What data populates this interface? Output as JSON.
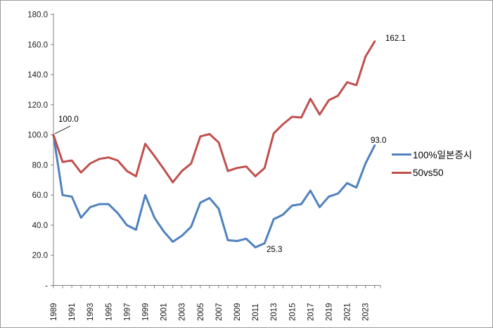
{
  "chart_data": {
    "type": "line",
    "x": [
      1989,
      1990,
      1991,
      1992,
      1993,
      1994,
      1995,
      1996,
      1997,
      1998,
      1999,
      2000,
      2001,
      2002,
      2003,
      2004,
      2005,
      2006,
      2007,
      2008,
      2009,
      2010,
      2011,
      2012,
      2013,
      2014,
      2015,
      2016,
      2017,
      2018,
      2019,
      2020,
      2021,
      2022,
      2023,
      2024
    ],
    "x_tick_labels": [
      "1989",
      "1991",
      "1993",
      "1995",
      "1997",
      "1999",
      "2001",
      "2003",
      "2005",
      "2007",
      "2009",
      "2011",
      "2013",
      "2015",
      "2017",
      "2019",
      "2021",
      "2023"
    ],
    "y_axis": {
      "min": 0,
      "max": 180,
      "step": 20,
      "tick_labels": [
        "180.0",
        "160.0",
        "140.0",
        "120.0",
        "100.0",
        "80.0",
        "60.0",
        "40.0",
        "20.0",
        "-"
      ]
    },
    "grid": false,
    "legend_position": "right",
    "series": [
      {
        "name": "100%일본증시",
        "color": "#4F81BD",
        "values": [
          100.0,
          60,
          59,
          45,
          52,
          54,
          54,
          48,
          40,
          37,
          60,
          45,
          36,
          29,
          33,
          39,
          55,
          58,
          51,
          30,
          29.5,
          31,
          25.3,
          28,
          44,
          47,
          53,
          54,
          63,
          52,
          59,
          61,
          68,
          65,
          81,
          93.0
        ]
      },
      {
        "name": "50vs50",
        "color": "#C0504D",
        "values": [
          100.0,
          82,
          83,
          75,
          81,
          84,
          85,
          83,
          76,
          72.5,
          94,
          86,
          77.5,
          68.5,
          76,
          81,
          99,
          100.5,
          95,
          76,
          78,
          79,
          72.5,
          78,
          101,
          107,
          112,
          111.5,
          124,
          113.5,
          123,
          126,
          135,
          133,
          152,
          162.1
        ]
      }
    ],
    "annotations": [
      {
        "text": "100.0",
        "target": "start of both series, 1989"
      },
      {
        "text": "162.1",
        "target": "50vs50 final value, 2024"
      },
      {
        "text": "93.0",
        "target": "100%일본증시 final value, 2024"
      },
      {
        "text": "25.3",
        "target": "100%일본증시 minimum, 2011"
      }
    ]
  },
  "annotations": {
    "start": "100.0",
    "red_end": "162.1",
    "blue_end": "93.0",
    "blue_min": "25.3"
  },
  "legend": {
    "items": [
      {
        "label": "100%일본증시",
        "color": "#4F81BD"
      },
      {
        "label": "50vs50",
        "color": "#C0504D"
      }
    ]
  },
  "colors": {
    "axis": "#808080",
    "tick_text": "#1a1a1a",
    "annotation_text": "#000000",
    "frame_border": "#9a9a9a"
  }
}
